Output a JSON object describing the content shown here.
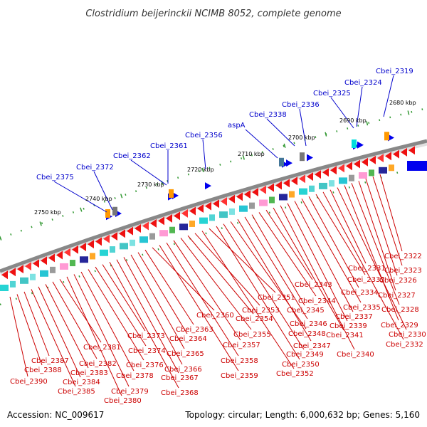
{
  "title": "Clostridium beijerinckii NCIMB 8052, complete genome",
  "footer": {
    "accession": "Accession: NC_009617",
    "summary": "Topology: circular; Length: 6,000,632 bp; Genes: 5,160"
  },
  "colors": {
    "backbone": "#888888",
    "forward_label": "#0000cc",
    "reverse_label": "#cc0000",
    "tick": "#339933"
  },
  "kbp_marks": [
    {
      "label": "2750 kbp"
    },
    {
      "label": "2740 kbp"
    },
    {
      "label": "2730 kbp"
    },
    {
      "label": "2720 kbp"
    },
    {
      "label": "2710 kbp"
    },
    {
      "label": "2700 kbp"
    },
    {
      "label": "2690 kbp"
    },
    {
      "label": "2680 kbp"
    }
  ],
  "forward_genes": [
    {
      "label": "Cbei_2375"
    },
    {
      "label": "Cbei_2372"
    },
    {
      "label": "Cbei_2362"
    },
    {
      "label": "Cbei_2361"
    },
    {
      "label": "Cbei_2356"
    },
    {
      "label": "aspA"
    },
    {
      "label": "Cbei_2338"
    },
    {
      "label": "Cbei_2336"
    },
    {
      "label": "Cbei_2325"
    },
    {
      "label": "Cbei_2324"
    },
    {
      "label": "Cbei_2319"
    }
  ],
  "reverse_genes": [
    {
      "label": "Cbei_2390"
    },
    {
      "label": "Cbei_2388"
    },
    {
      "label": "Cbei_2387"
    },
    {
      "label": "Cbei_2385"
    },
    {
      "label": "Cbei_2384"
    },
    {
      "label": "Cbei_2383"
    },
    {
      "label": "Cbei_2382"
    },
    {
      "label": "Cbei_2381"
    },
    {
      "label": "Cbei_2380"
    },
    {
      "label": "Cbei_2379"
    },
    {
      "label": "Cbei_2378"
    },
    {
      "label": "Cbei_2376"
    },
    {
      "label": "Cbei_2374"
    },
    {
      "label": "Cbei_2373"
    },
    {
      "label": "Cbei_2368"
    },
    {
      "label": "Cbei_2367"
    },
    {
      "label": "Cbei_2366"
    },
    {
      "label": "Cbei_2365"
    },
    {
      "label": "Cbei_2364"
    },
    {
      "label": "Cbei_2363"
    },
    {
      "label": "Cbei_2360"
    },
    {
      "label": "Cbei_2359"
    },
    {
      "label": "Cbei_2358"
    },
    {
      "label": "Cbei_2357"
    },
    {
      "label": "Cbei_2355"
    },
    {
      "label": "Cbei_2354"
    },
    {
      "label": "Cbei_2353"
    },
    {
      "label": "Cbei_2352"
    },
    {
      "label": "Cbei_2351"
    },
    {
      "label": "Cbei_2350"
    },
    {
      "label": "Cbei_2349"
    },
    {
      "label": "Cbei_2348"
    },
    {
      "label": "Cbei_2347"
    },
    {
      "label": "Cbei_2346"
    },
    {
      "label": "Cbei_2345"
    },
    {
      "label": "Cbei_2344"
    },
    {
      "label": "Cbei_2343"
    },
    {
      "label": "Cbei_2341"
    },
    {
      "label": "Cbei_2340"
    },
    {
      "label": "Cbei_2339"
    },
    {
      "label": "Cbei_2337"
    },
    {
      "label": "Cbei_2335"
    },
    {
      "label": "Cbei_2334"
    },
    {
      "label": "Cbei_2333"
    },
    {
      "label": "Cbei_2332"
    },
    {
      "label": "Cbei_2331"
    },
    {
      "label": "Cbei_2330"
    },
    {
      "label": "Cbei_2329"
    },
    {
      "label": "Cbei_2328"
    },
    {
      "label": "Cbei_2327"
    },
    {
      "label": "Cbei_2326"
    },
    {
      "label": "Cbei_2323"
    },
    {
      "label": "Cbei_2322"
    }
  ]
}
